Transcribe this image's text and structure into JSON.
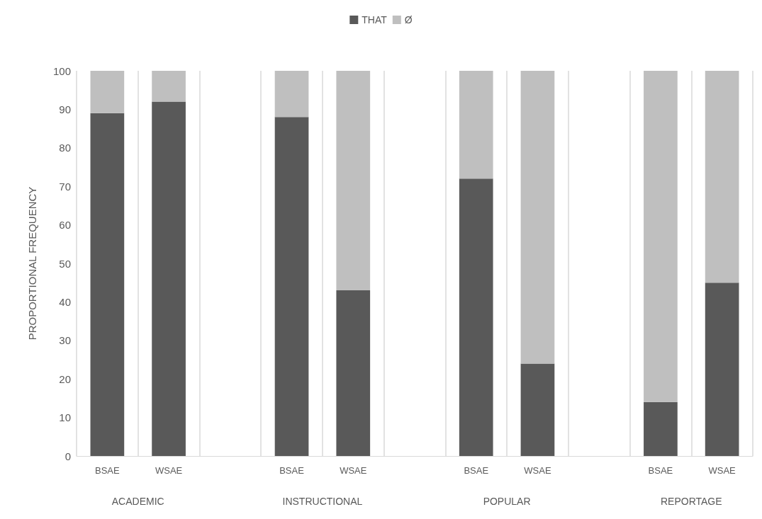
{
  "chart_data": {
    "type": "bar",
    "stacked": true,
    "ylabel": "PROPORTIONAL FREQUENCY",
    "categories": [
      "BSAE",
      "WSAE",
      null,
      "BSAE",
      "WSAE",
      null,
      "BSAE",
      "WSAE",
      null,
      "BSAE",
      "WSAE"
    ],
    "series": [
      {
        "name": "THAT",
        "color": "#595959",
        "values": [
          89,
          92,
          null,
          88,
          43,
          null,
          72,
          24,
          null,
          14,
          45
        ]
      },
      {
        "name": "Ø",
        "color": "#bfbfbf",
        "values": [
          11,
          8,
          null,
          12,
          57,
          null,
          28,
          76,
          null,
          86,
          55
        ]
      }
    ],
    "ylim": [
      0,
      100
    ],
    "yticks": [
      0,
      10,
      20,
      30,
      40,
      50,
      60,
      70,
      80,
      90,
      100
    ],
    "grid": "x",
    "legend": "top",
    "annotations": [
      "ACADEMIC",
      "INSTRUCTIONAL",
      "POPULAR",
      "REPORTAGE"
    ]
  }
}
